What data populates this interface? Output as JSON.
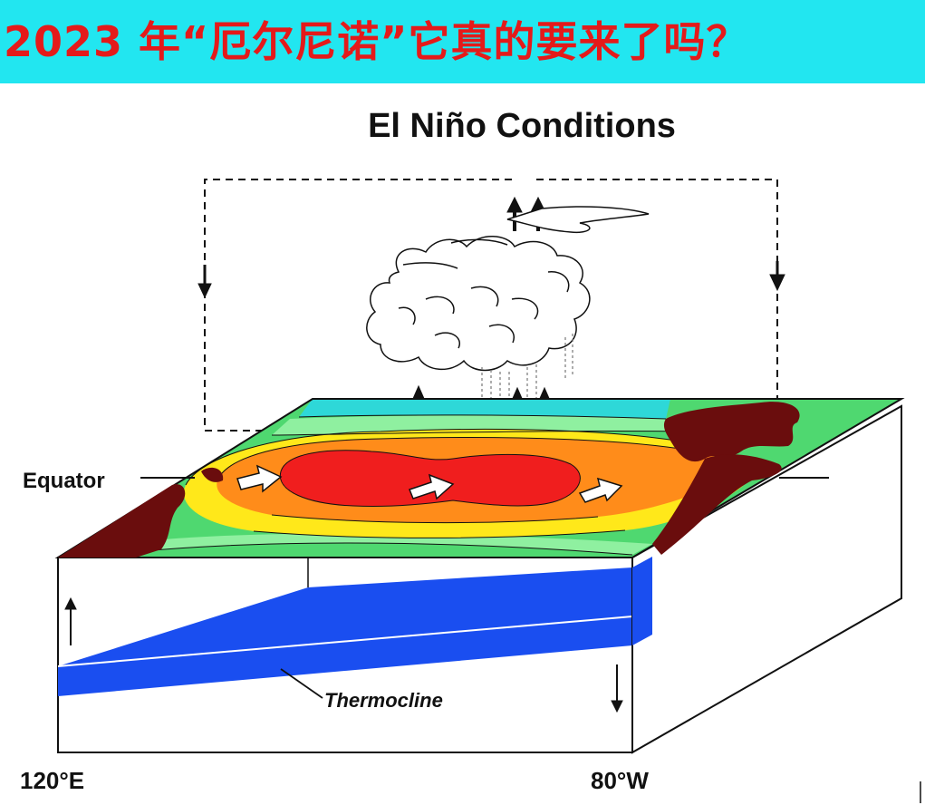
{
  "header": {
    "title": "2023 年“厄尔尼诺”它真的要来了吗？"
  },
  "diagram": {
    "title": "El Niño Conditions",
    "labels": {
      "equator": "Equator",
      "thermocline": "Thermocline",
      "lon_west": "120°E",
      "lon_east": "80°W"
    }
  },
  "colors": {
    "banner_background": "#22e6f0",
    "title_text": "#e41a1a",
    "land": "#6a0d0d",
    "warm_pool": "#f01e1e",
    "sst_orange": "#ff8c1a",
    "sst_yellow": "#ffe81a",
    "sst_green": "#4fd870",
    "sst_cyan": "#2ed8d8",
    "deep_water": "#1a4ef0"
  }
}
